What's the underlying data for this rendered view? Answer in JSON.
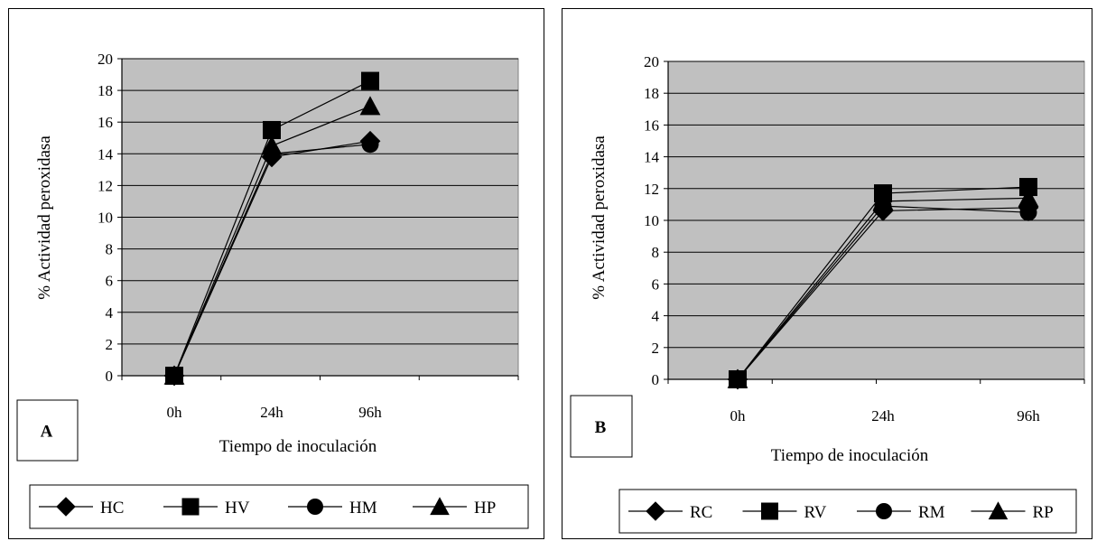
{
  "chart_data": [
    {
      "type": "line",
      "panel_label": "A",
      "xlabel": "Tiempo de inoculación",
      "ylabel": "% Actividad peroxidasa",
      "categories": [
        "0h",
        "24h",
        "96h"
      ],
      "ylim": [
        0,
        20
      ],
      "yticks": [
        "0",
        "2",
        "4",
        "6",
        "8",
        "10",
        "12",
        "14",
        "16",
        "18",
        "20"
      ],
      "grid": true,
      "legend_position": "bottom",
      "series": [
        {
          "name": "HC",
          "marker": "diamond",
          "values": [
            0,
            13.8,
            14.8
          ]
        },
        {
          "name": "HV",
          "marker": "square",
          "values": [
            0,
            15.5,
            18.6
          ]
        },
        {
          "name": "HM",
          "marker": "circle",
          "values": [
            0,
            14.0,
            14.6
          ]
        },
        {
          "name": "HP",
          "marker": "triangle",
          "values": [
            0,
            14.5,
            17.0
          ]
        }
      ]
    },
    {
      "type": "line",
      "panel_label": "B",
      "xlabel": "Tiempo de inoculación",
      "ylabel": "% Actividad peroxidasa",
      "categories": [
        "0h",
        "24h",
        "96h"
      ],
      "ylim": [
        0,
        20
      ],
      "yticks": [
        "0",
        "2",
        "4",
        "6",
        "8",
        "10",
        "12",
        "14",
        "16",
        "18",
        "20"
      ],
      "grid": true,
      "legend_position": "bottom",
      "series": [
        {
          "name": "RC",
          "marker": "diamond",
          "values": [
            0,
            10.6,
            10.8
          ]
        },
        {
          "name": "RV",
          "marker": "square",
          "values": [
            0,
            11.7,
            12.1
          ]
        },
        {
          "name": "RM",
          "marker": "circle",
          "values": [
            0,
            10.9,
            10.5
          ]
        },
        {
          "name": "RP",
          "marker": "triangle",
          "values": [
            0,
            11.2,
            11.4
          ]
        }
      ]
    }
  ],
  "colors": {
    "plot_background": "#c0c0c0",
    "line_color": "#000000"
  }
}
